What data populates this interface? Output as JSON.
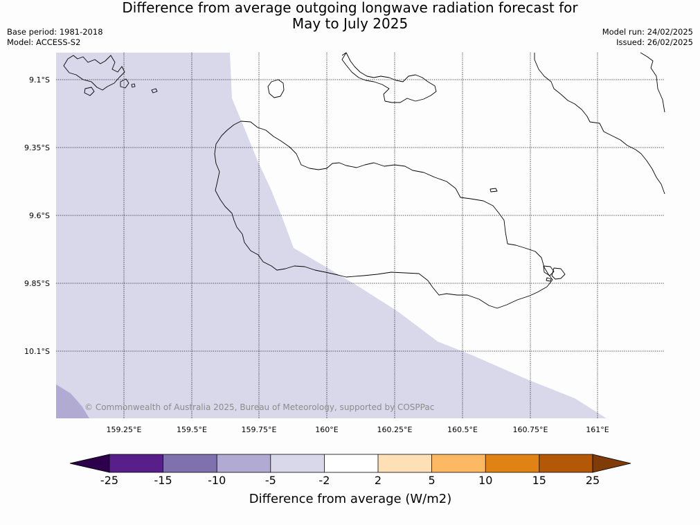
{
  "title": {
    "line1": "Difference from average outgoing longwave radiation forecast for",
    "line2": "May to July 2025"
  },
  "meta": {
    "base_period": "Base period: 1981-2018",
    "model": "Model: ACCESS-S2",
    "model_run": "Model run: 24/02/2025",
    "issued": "Issued: 26/02/2025"
  },
  "map": {
    "latitude_labels": [
      "9.1°S",
      "9.35°S",
      "9.6°S",
      "9.85°S",
      "10.1°S"
    ],
    "longitude_labels": [
      "159.25°E",
      "159.5°E",
      "159.75°E",
      "160°E",
      "160.25°E",
      "160.5°E",
      "160.75°E",
      "161°E"
    ],
    "copyright": "© Commonwealth of Australia 2025, Bureau of Meteorology, supported by COSPPac"
  },
  "colorbar": {
    "title": "Difference from average (W/m2)",
    "tick_labels": [
      "-25",
      "-15",
      "-10",
      "-5",
      "-2",
      "2",
      "5",
      "10",
      "15",
      "25"
    ],
    "colors": [
      "#581f8b",
      "#7e71ad",
      "#b1aad3",
      "#d8d8ea",
      "#ffffff",
      "#fee0b6",
      "#fdb863",
      "#e08214",
      "#b35806"
    ],
    "extend_low_color": "#2d004b",
    "extend_high_color": "#7f3b08"
  }
}
